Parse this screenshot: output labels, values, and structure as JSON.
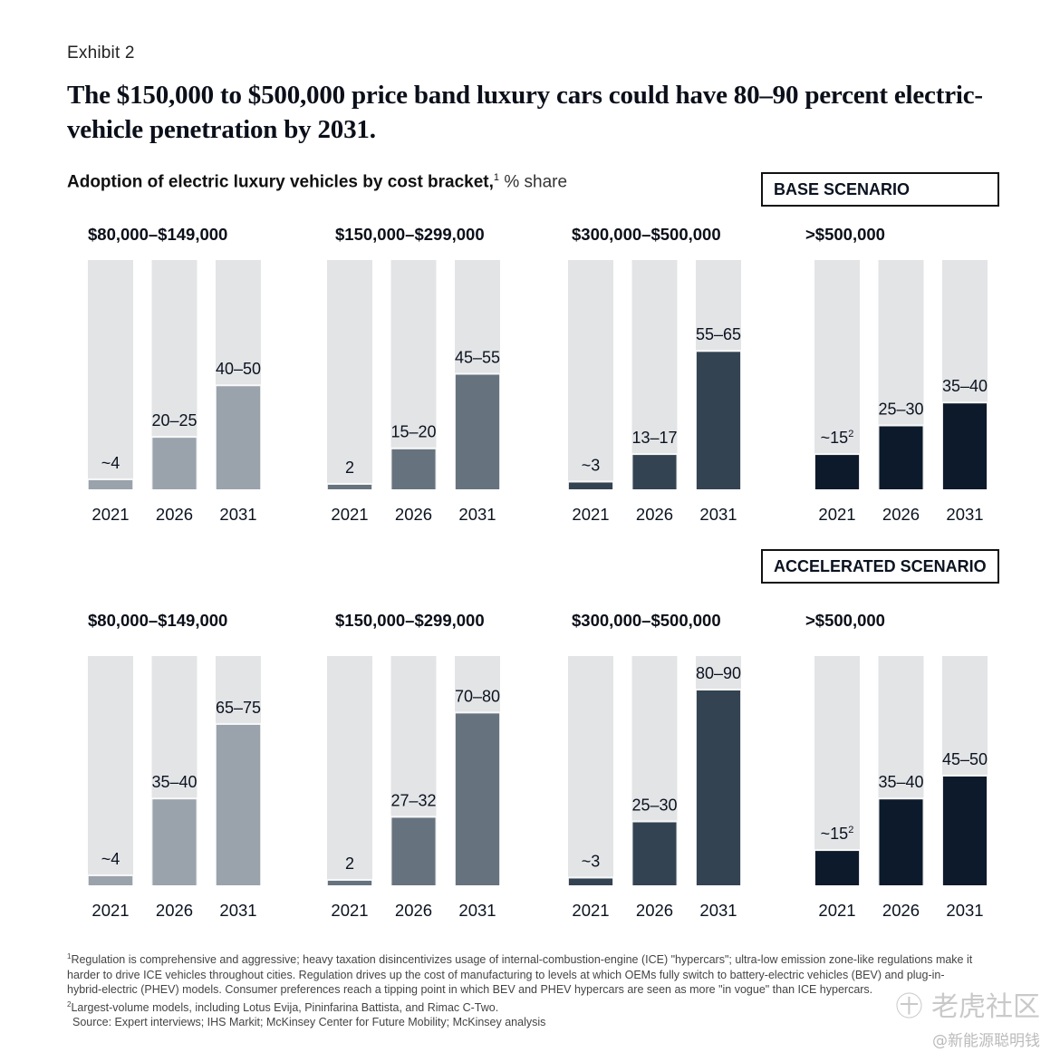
{
  "exhibit_label": "Exhibit 2",
  "headline": "The $150,000 to $500,000 price band luxury cars could have 80–90 percent electric-vehicle penetration by 2031.",
  "subtitle": {
    "text": "Adoption of electric luxury vehicles by cost bracket,",
    "footnote_mark": "1",
    "unit": " % share"
  },
  "colors": {
    "track": "#e3e4e6",
    "bracket_80_149": "#9aa2ac",
    "bracket_150_299": "#66737f",
    "bracket_300_500": "#344352",
    "bracket_500_plus": "#0c1a2b",
    "text": "#0b1320"
  },
  "chart_data": [
    {
      "type": "bar",
      "scenario": "BASE SCENARIO",
      "title": "Adoption of electric luxury vehicles by cost bracket, % share",
      "ylabel": "% share",
      "ylim": [
        0,
        100
      ],
      "grid": false,
      "categories": [
        "2021",
        "2026",
        "2031"
      ],
      "series": [
        {
          "name": "$80,000–$149,000",
          "color_key": "bracket_80_149",
          "labels": [
            "~4",
            "20–25",
            "40–50"
          ],
          "values": [
            4,
            22.5,
            45
          ]
        },
        {
          "name": "$150,000–$299,000",
          "color_key": "bracket_150_299",
          "labels": [
            "2",
            "15–20",
            "45–55"
          ],
          "values": [
            2,
            17.5,
            50
          ]
        },
        {
          "name": "$300,000–$500,000",
          "color_key": "bracket_300_500",
          "labels": [
            "~3",
            "13–17",
            "55–65"
          ],
          "values": [
            3,
            15,
            60
          ]
        },
        {
          "name": ">$500,000",
          "color_key": "bracket_500_plus",
          "labels": [
            "~15",
            "25–30",
            "35–40"
          ],
          "label_footnotes": [
            "2",
            "",
            ""
          ],
          "values": [
            15,
            27.5,
            37.5
          ]
        }
      ]
    },
    {
      "type": "bar",
      "scenario": "ACCELERATED SCENARIO",
      "title": "Adoption of electric luxury vehicles by cost bracket, % share",
      "ylabel": "% share",
      "ylim": [
        0,
        100
      ],
      "grid": false,
      "categories": [
        "2021",
        "2026",
        "2031"
      ],
      "series": [
        {
          "name": "$80,000–$149,000",
          "color_key": "bracket_80_149",
          "labels": [
            "~4",
            "35–40",
            "65–75"
          ],
          "values": [
            4,
            37.5,
            70
          ]
        },
        {
          "name": "$150,000–$299,000",
          "color_key": "bracket_150_299",
          "labels": [
            "2",
            "27–32",
            "70–80"
          ],
          "values": [
            2,
            29.5,
            75
          ]
        },
        {
          "name": "$300,000–$500,000",
          "color_key": "bracket_300_500",
          "labels": [
            "~3",
            "25–30",
            "80–90"
          ],
          "values": [
            3,
            27.5,
            85
          ]
        },
        {
          "name": ">$500,000",
          "color_key": "bracket_500_plus",
          "labels": [
            "~15",
            "35–40",
            "45–50"
          ],
          "label_footnotes": [
            "2",
            "",
            ""
          ],
          "values": [
            15,
            37.5,
            47.5
          ]
        }
      ]
    }
  ],
  "footnotes": {
    "note1_mark": "1",
    "note1": "Regulation is comprehensive and aggressive; heavy taxation disincentivizes usage of internal-combustion-engine (ICE) \"hypercars\"; ultra-low emission zone-like regulations make it harder to drive ICE vehicles throughout cities. Regulation drives up the cost of manufacturing to levels at which OEMs fully switch to battery-electric vehicles (BEV) and plug-in-hybrid-electric (PHEV) models. Consumer preferences reach a tipping point in which BEV and PHEV hypercars are seen as more \"in vogue\" than ICE hypercars.",
    "note2_mark": "2",
    "note2": "Largest-volume models, including Lotus Evija, Pininfarina Battista, and Rimac C-Two.",
    "source": "Source: Expert interviews; IHS Markit; McKinsey Center for Future Mobility; McKinsey analysis"
  },
  "watermark": {
    "line1": "㊉ 老虎社区",
    "line2": "@新能源聪明钱"
  }
}
